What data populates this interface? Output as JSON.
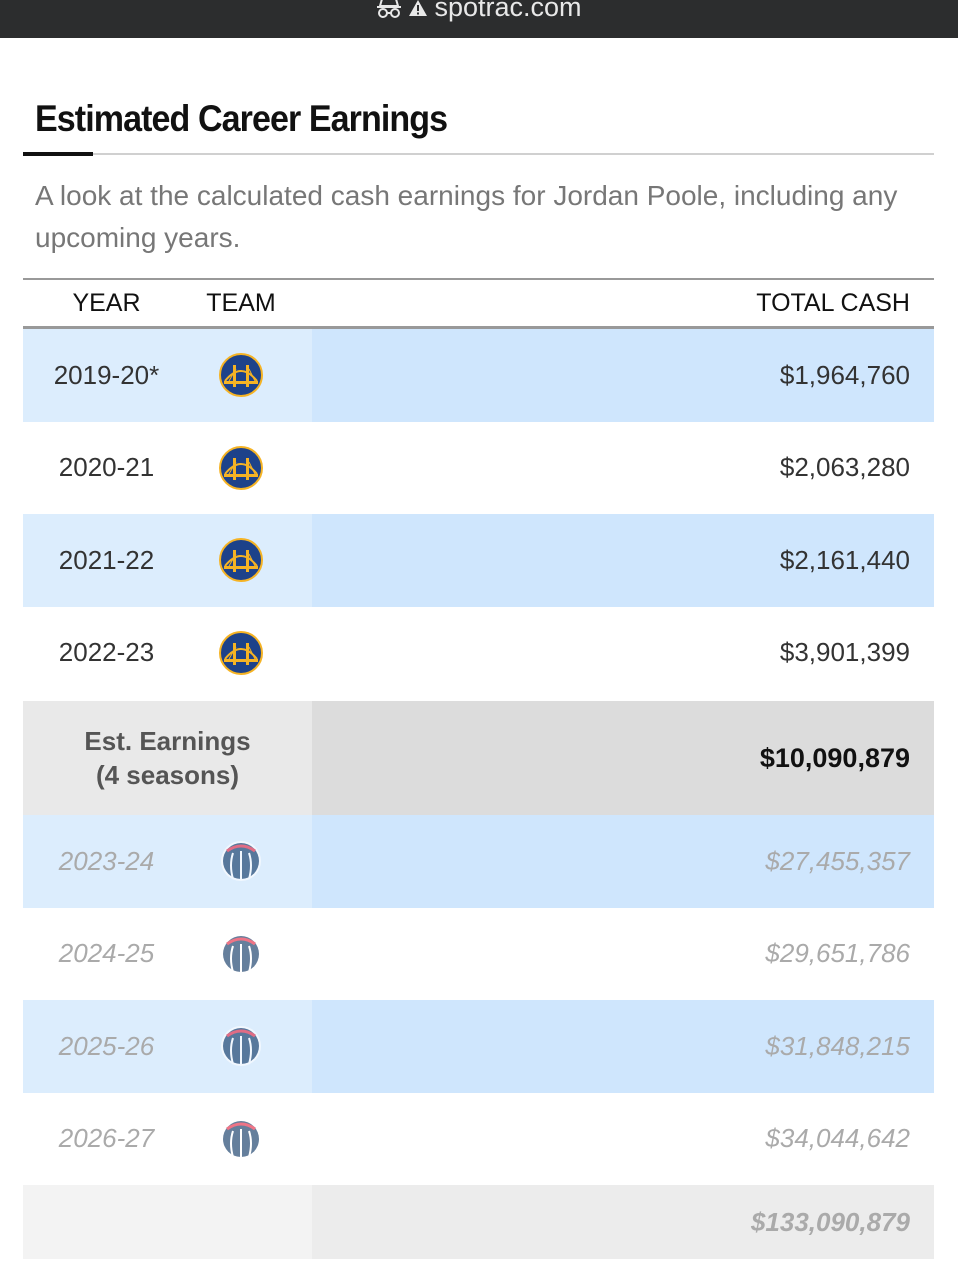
{
  "browser": {
    "url": "spotrac.com",
    "icons": [
      "incognito-icon",
      "warning-icon"
    ]
  },
  "section": {
    "title": "Estimated Career Earnings",
    "description": "A look at the calculated cash earnings for Jordan Poole, including any upcoming years."
  },
  "table": {
    "headers": {
      "year": "YEAR",
      "team": "TEAM",
      "total_cash": "TOTAL CASH"
    },
    "rows": [
      {
        "year": "2019-20*",
        "team_logo": "warriors-logo-icon",
        "cash": "$1,964,760"
      },
      {
        "year": "2020-21",
        "team_logo": "warriors-logo-icon",
        "cash": "$2,063,280"
      },
      {
        "year": "2021-22",
        "team_logo": "warriors-logo-icon",
        "cash": "$2,161,440"
      },
      {
        "year": "2022-23",
        "team_logo": "warriors-logo-icon",
        "cash": "$3,901,399"
      }
    ],
    "subtotal": {
      "label_line1": "Est. Earnings",
      "label_line2": "(4 seasons)",
      "value": "$10,090,879"
    },
    "future_rows": [
      {
        "year": "2023-24",
        "team_logo": "wizards-logo-icon",
        "cash": "$27,455,357"
      },
      {
        "year": "2024-25",
        "team_logo": "wizards-logo-icon",
        "cash": "$29,651,786"
      },
      {
        "year": "2025-26",
        "team_logo": "wizards-logo-icon",
        "cash": "$31,848,215"
      },
      {
        "year": "2026-27",
        "team_logo": "wizards-logo-icon",
        "cash": "$34,044,642"
      }
    ],
    "grand_total": "$133,090,879"
  },
  "colors": {
    "row_highlight": "#cfe6fd",
    "subtotal_bg": "#dcdcdc",
    "topbar": "#2c2d2e",
    "future_text": "#aaaaaa"
  }
}
